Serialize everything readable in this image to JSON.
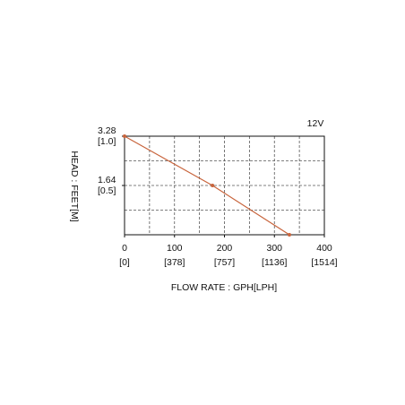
{
  "chart_data": {
    "type": "line",
    "annotation": "12V",
    "x_label": "FLOW RATE : GPH[LPH]",
    "y_label": "HEAD : FEET[M]",
    "x": [
      0,
      176,
      330
    ],
    "series": [
      {
        "color": "#c8643c",
        "values": [
          3.28,
          1.64,
          0
        ]
      }
    ],
    "xlim": [
      0,
      400
    ],
    "ylim": [
      0,
      3.28
    ],
    "xticks": [
      {
        "value": 0,
        "label": "0",
        "sub_label": "[0]"
      },
      {
        "value": 100,
        "label": "100",
        "sub_label": "[378]"
      },
      {
        "value": 200,
        "label": "200",
        "sub_label": "[757]"
      },
      {
        "value": 300,
        "label": "300",
        "sub_label": "[1136]"
      },
      {
        "value": 400,
        "label": "400",
        "sub_label": "[1514]"
      }
    ],
    "yticks": [
      {
        "value": 3.28,
        "label": "3.28",
        "sub_label": "[1.0]"
      },
      {
        "value": 1.64,
        "label": "1.64",
        "sub_label": "[0.5]"
      }
    ],
    "xgrid": [
      50,
      100,
      150,
      200,
      250,
      300,
      350
    ],
    "ygrid": [
      0.82,
      1.64,
      2.46
    ],
    "grid": true
  }
}
